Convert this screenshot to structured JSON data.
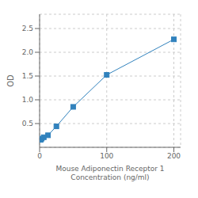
{
  "chart_data": {
    "type": "line",
    "x": [
      1.563,
      3.125,
      6.25,
      12.5,
      25,
      50,
      100,
      200
    ],
    "values": [
      0.158,
      0.183,
      0.212,
      0.253,
      0.441,
      0.851,
      1.525,
      2.272
    ],
    "xlabel": "Mouse Adiponectin Receptor 1\nConcentration (ng/ml)",
    "ylabel": "OD",
    "xlim": [
      0,
      210
    ],
    "ylim": [
      0,
      2.8
    ],
    "xticks": [
      0,
      100,
      200
    ],
    "yticks": [
      0.5,
      {
        "value": 1.0,
        "label": "1.0"
      },
      1.5,
      {
        "value": 2.0,
        "label": "2.0"
      },
      2.5
    ],
    "grid": true,
    "marker": "square"
  }
}
